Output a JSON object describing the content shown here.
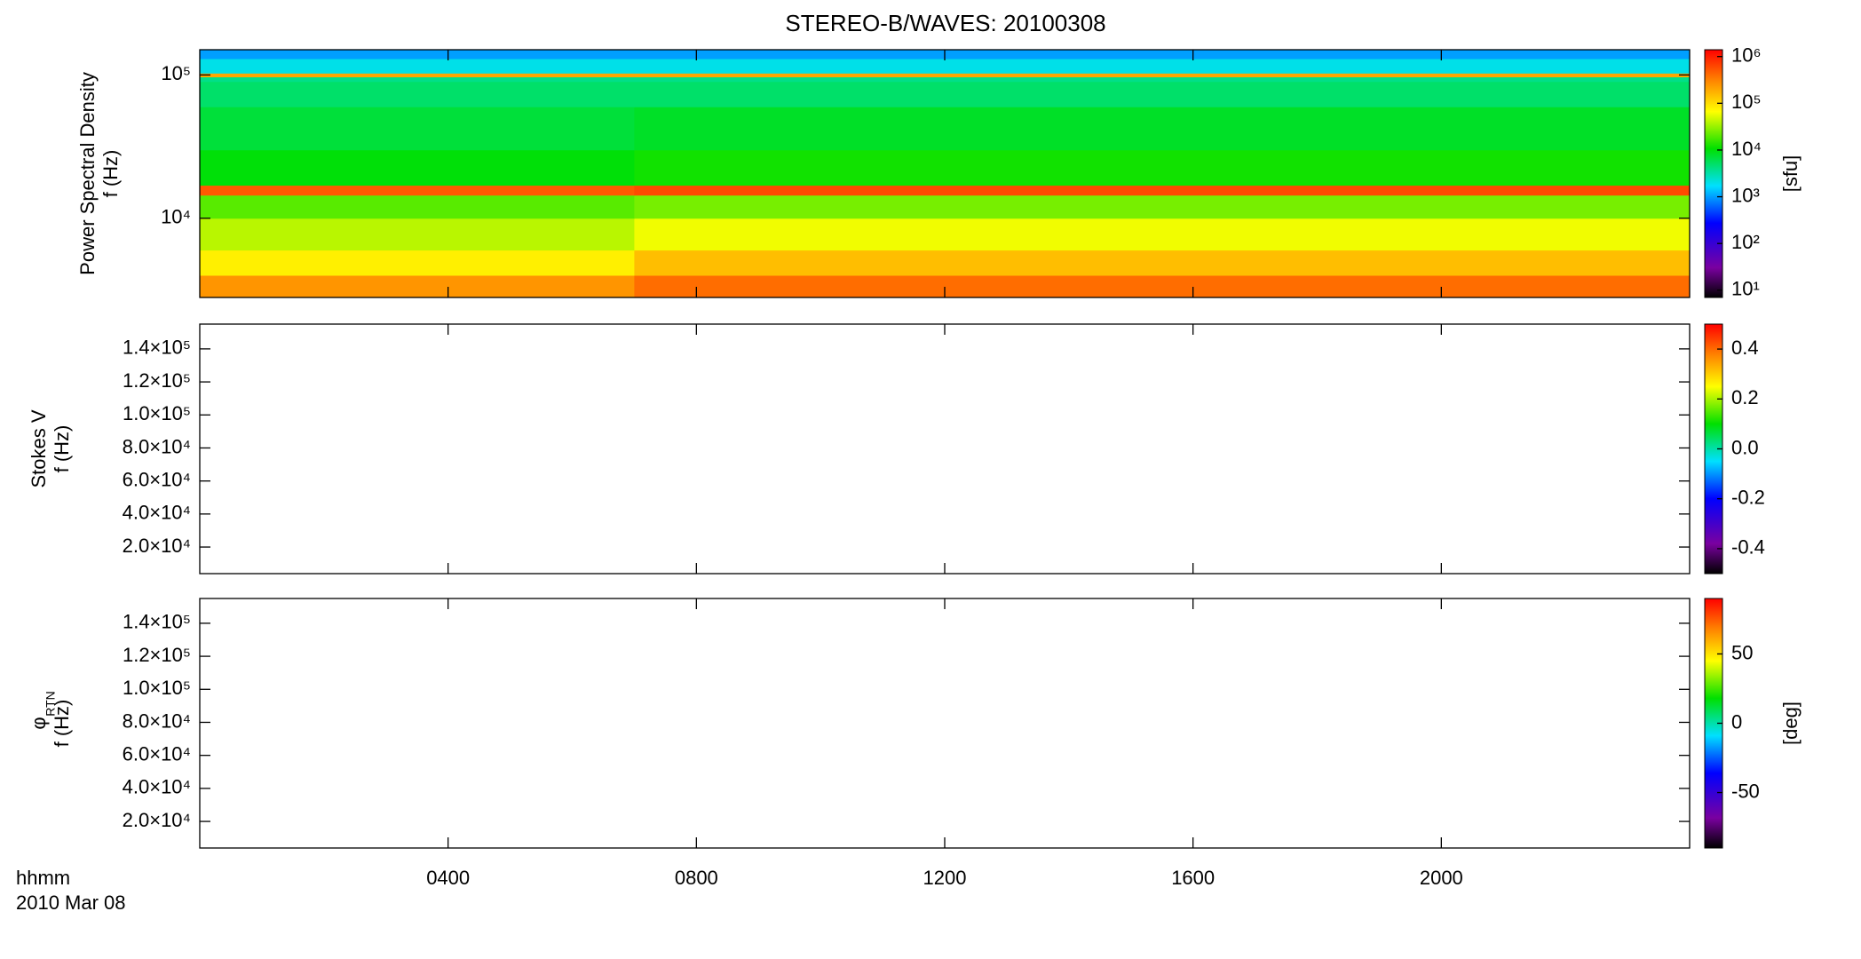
{
  "chart_data": [
    {
      "type": "heatmap",
      "title": "STEREO-B/WAVES: 20100308",
      "ylabel": [
        "Power Spectral Density",
        "f (Hz)"
      ],
      "ylog": true,
      "ylim": [
        2800,
        150000
      ],
      "yticks": [
        {
          "value": 10000,
          "label": "10⁴"
        },
        {
          "value": 100000,
          "label": "10⁵"
        }
      ],
      "time_edges": [
        0,
        7,
        24
      ],
      "freq_edges": [
        2800,
        4000,
        6000,
        10000,
        14500,
        17000,
        30000,
        60000,
        90000,
        97000,
        103000,
        130000,
        150000
      ],
      "z": [
        [
          250000,
          400000
        ],
        [
          80000,
          150000
        ],
        [
          40000,
          60000
        ],
        [
          20000,
          25000
        ],
        [
          500000,
          600000
        ],
        [
          10000,
          12000
        ],
        [
          7000,
          8000
        ],
        [
          5000,
          5000
        ],
        [
          4000,
          4000
        ],
        [
          200000,
          200000
        ],
        [
          2000,
          2000
        ],
        [
          1000,
          1000
        ]
      ],
      "colorbar": {
        "log": true,
        "clim": [
          7,
          1400000
        ],
        "label": "[sfu]",
        "ticks": [
          {
            "value": 10,
            "label": "10¹"
          },
          {
            "value": 100,
            "label": "10²"
          },
          {
            "value": 1000,
            "label": "10³"
          },
          {
            "value": 10000,
            "label": "10⁴"
          },
          {
            "value": 100000,
            "label": "10⁵"
          },
          {
            "value": 1000000,
            "label": "10⁶"
          }
        ]
      }
    },
    {
      "type": "heatmap",
      "ylabel": [
        "Stokes V",
        "f (Hz)"
      ],
      "ylim": [
        3900,
        155000
      ],
      "yticks": [
        {
          "value": 20000,
          "label": "2.0×10⁴"
        },
        {
          "value": 40000,
          "label": "4.0×10⁴"
        },
        {
          "value": 60000,
          "label": "6.0×10⁴"
        },
        {
          "value": 80000,
          "label": "8.0×10⁴"
        },
        {
          "value": 100000,
          "label": "1.0×10⁵"
        },
        {
          "value": 120000,
          "label": "1.2×10⁵"
        },
        {
          "value": 140000,
          "label": "1.4×10⁵"
        }
      ],
      "colorbar": {
        "clim": [
          -0.5,
          0.5
        ],
        "ticks": [
          -0.4,
          -0.2,
          {
            "value": 0,
            "label": "0.0"
          },
          0.2,
          0.4
        ]
      }
    },
    {
      "type": "heatmap",
      "ylabel": [
        "φ",
        "f (Hz)"
      ],
      "ylabel_sub": "RTN",
      "ylim": [
        3900,
        155000
      ],
      "yticks": [
        {
          "value": 20000,
          "label": "2.0×10⁴"
        },
        {
          "value": 40000,
          "label": "4.0×10⁴"
        },
        {
          "value": 60000,
          "label": "6.0×10⁴"
        },
        {
          "value": 80000,
          "label": "8.0×10⁴"
        },
        {
          "value": 100000,
          "label": "1.0×10⁵"
        },
        {
          "value": 120000,
          "label": "1.2×10⁵"
        },
        {
          "value": 140000,
          "label": "1.4×10⁵"
        }
      ],
      "colorbar": {
        "clim": [
          -90,
          90
        ],
        "label": "[deg]",
        "ticks": [
          -50,
          0,
          50
        ]
      },
      "xlim": [
        0,
        24
      ],
      "xticks": [
        {
          "value": 4,
          "label": "0400"
        },
        {
          "value": 8,
          "label": "0800"
        },
        {
          "value": 12,
          "label": "1200"
        },
        {
          "value": 16,
          "label": "1600"
        },
        {
          "value": 20,
          "label": "2000"
        }
      ],
      "xlabel": [
        "hhmm",
        "2010 Mar 08"
      ]
    }
  ]
}
